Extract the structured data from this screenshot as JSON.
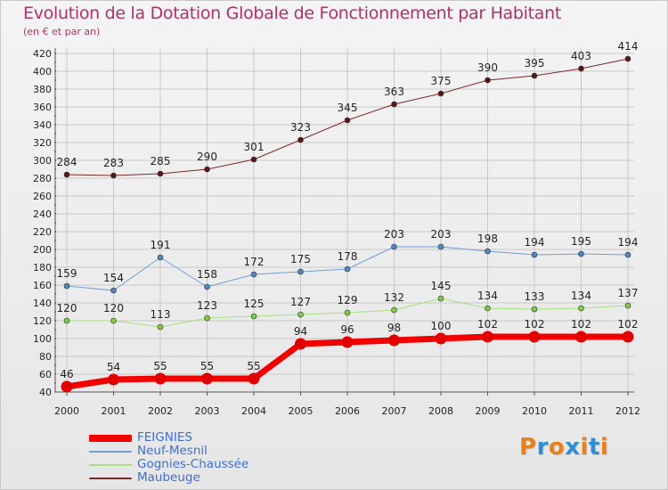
{
  "title": "Evolution de la Dotation Globale de Fonctionnement par Habitant",
  "subtitle": "(en € et par an)",
  "brand": "Proxiti",
  "brand_letters": [
    {
      "ch": "P",
      "color": "#e8811c"
    },
    {
      "ch": "r",
      "color": "#2e8fd0"
    },
    {
      "ch": "o",
      "color": "#e8811c"
    },
    {
      "ch": "x",
      "color": "#2e8fd0"
    },
    {
      "ch": "i",
      "color": "#e8811c"
    },
    {
      "ch": "t",
      "color": "#2e8fd0"
    },
    {
      "ch": "i",
      "color": "#e8811c"
    }
  ],
  "colors": {
    "title": "#b0306a",
    "grid": "#c8c8c8",
    "axis_marks": "#cc2020"
  },
  "chart_data": {
    "type": "line",
    "title": "Evolution de la Dotation Globale de Fonctionnement par Habitant",
    "subtitle": "(en € et par an)",
    "xlabel": "",
    "ylabel": "",
    "x": [
      "2000",
      "2001",
      "2002",
      "2003",
      "2004",
      "2005",
      "2006",
      "2007",
      "2008",
      "2009",
      "2010",
      "2011",
      "2012"
    ],
    "ylim": [
      40,
      420
    ],
    "yticks": [
      40,
      60,
      80,
      100,
      120,
      140,
      160,
      180,
      200,
      220,
      240,
      260,
      280,
      300,
      320,
      340,
      360,
      380,
      400,
      420
    ],
    "grid": true,
    "legend_position": "bottom-left",
    "series": [
      {
        "name": "Maubeuge",
        "color": "#7a2828",
        "marker": "#5a1616",
        "width": 1,
        "values": [
          284,
          283,
          285,
          290,
          301,
          323,
          345,
          363,
          375,
          390,
          395,
          403,
          414
        ]
      },
      {
        "name": "Neuf-Mesnil",
        "color": "#6f9ed2",
        "marker": "#4f86c6",
        "width": 1,
        "values": [
          159,
          154,
          191,
          158,
          172,
          175,
          178,
          203,
          203,
          198,
          194,
          195,
          194
        ]
      },
      {
        "name": "Gognies-Chaussée",
        "color": "#a8e07c",
        "marker": "#7ccc44",
        "width": 1,
        "values": [
          120,
          120,
          113,
          123,
          125,
          127,
          129,
          132,
          145,
          134,
          133,
          134,
          137
        ]
      },
      {
        "name": "FEIGNIES",
        "color": "#f20000",
        "marker": "#e00000",
        "width": 7,
        "values": [
          46,
          54,
          55,
          55,
          55,
          94,
          96,
          98,
          100,
          102,
          102,
          102,
          102
        ]
      }
    ]
  },
  "legend": [
    {
      "name": "FEIGNIES",
      "color": "#f20000",
      "thickness": 8
    },
    {
      "name": "Neuf-Mesnil",
      "color": "#6f9ed2",
      "thickness": 2
    },
    {
      "name": "Gognies-Chaussée",
      "color": "#a8e07c",
      "thickness": 2
    },
    {
      "name": "Maubeuge",
      "color": "#7a2828",
      "thickness": 2
    }
  ]
}
